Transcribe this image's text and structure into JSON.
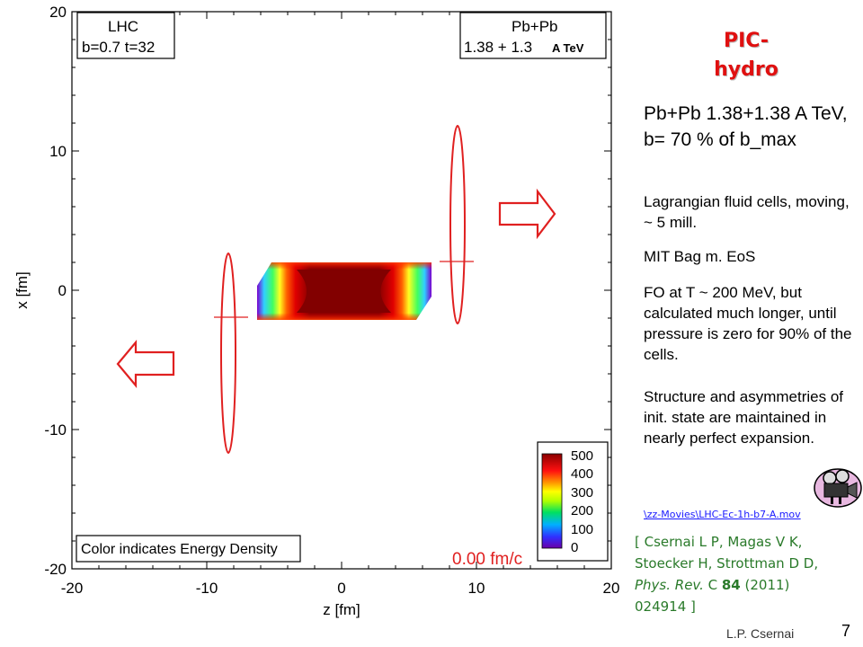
{
  "slide": {
    "title_line1": "PIC-",
    "title_line2": "hydro",
    "description_main": "Pb+Pb 1.38+1.38 A TeV, b= 70 % of b_max",
    "bullets": [
      "Lagrangian fluid cells, moving, ~ 5 mill.",
      "MIT Bag m. EoS",
      "FO at T ~ 200 MeV, but calculated much longer, until pressure  is zero for 90% of the cells.",
      "Structure and asymmetries of init. state are maintained in nearly perfect expansion."
    ],
    "movie_link": "\\zz-Movies\\LHC-Ec-1h-b7-A.mov",
    "movie_icon": "film-camera-icon",
    "citation": {
      "open": "[ ",
      "authors": "Csernai L P, Magas V K, Stoecker H, Strottman D D, ",
      "journal": "Phys. Rev.",
      "volume_prefix": " C ",
      "volume": "84",
      "year_pages": "  (2011) 024914 ]"
    },
    "author": "L.P. Csernai",
    "page_number": "7"
  },
  "plot": {
    "info_left_line1": "LHC",
    "info_left_line2": "b=0.7  t=32",
    "info_right_line1": "Pb+Pb",
    "info_right_line2": "1.38 + 1.3",
    "info_right_overlay": "A TeV",
    "xlabel": "z  [fm]",
    "ylabel": "x  [fm]",
    "x_ticks": [
      "-20",
      "-10",
      "0",
      "10",
      "20"
    ],
    "y_ticks": [
      "20",
      "10",
      "0",
      "-10",
      "-20"
    ],
    "time_label": "0.00 fm/c",
    "caption": "Color indicates Energy Density",
    "colorbar_ticks": [
      "500",
      "400",
      "300",
      "200",
      "100",
      "0"
    ],
    "colors": {
      "annotation": "#e02020",
      "axis": "#000000"
    }
  }
}
